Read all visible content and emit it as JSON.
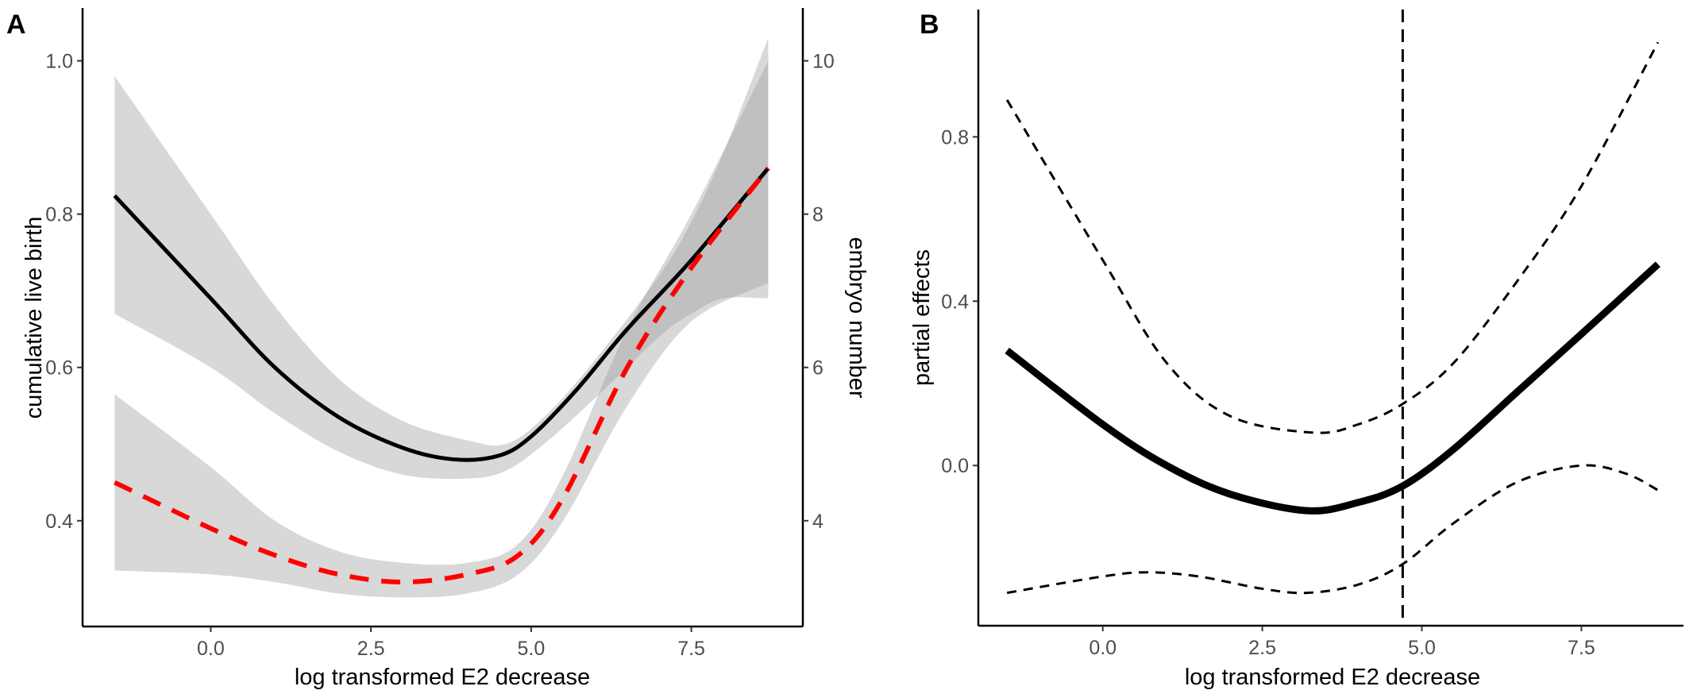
{
  "chart_data": [
    {
      "panel": "A",
      "type": "line",
      "xlabel": "log transformed E2 decrease",
      "ylabel": "cumulative live birth",
      "ylabel_right": "embryo number",
      "xlim": [
        -2.0,
        9.24
      ],
      "ylim": [
        0.262,
        1.069
      ],
      "ylim_right": [
        2.62,
        10.69
      ],
      "xticks": [
        "0.0",
        "2.5",
        "5.0",
        "7.5"
      ],
      "xtick_values": [
        0,
        2.5,
        5,
        7.5
      ],
      "yticks": [
        "0.4",
        "0.6",
        "0.8",
        "1.0"
      ],
      "ytick_values": [
        0.4,
        0.6,
        0.8,
        1.0
      ],
      "yticks_right": [
        "4",
        "6",
        "8",
        "10"
      ],
      "ytick_right_values": [
        4,
        6,
        8,
        10
      ],
      "grid": false,
      "series": [
        {
          "name": "cumulative live birth",
          "axis": "left",
          "color": "#000000",
          "style": "solid",
          "x": [
            -1.5,
            0,
            1,
            2,
            3,
            3.8,
            4.5,
            5,
            5.7,
            6.5,
            7.5,
            8.7
          ],
          "y": [
            0.824,
            0.69,
            0.6,
            0.535,
            0.495,
            0.48,
            0.485,
            0.51,
            0.57,
            0.65,
            0.74,
            0.86
          ],
          "ci_x": [
            -1.5,
            0,
            1,
            2,
            3,
            4,
            4.6,
            5.2,
            6,
            7,
            7.5,
            8,
            8.7
          ],
          "ci_upper": [
            0.98,
            0.8,
            0.68,
            0.585,
            0.53,
            0.505,
            0.5,
            0.535,
            0.61,
            0.72,
            0.79,
            0.88,
            1.03
          ],
          "ci_lower": [
            0.67,
            0.6,
            0.54,
            0.49,
            0.46,
            0.455,
            0.465,
            0.5,
            0.56,
            0.64,
            0.67,
            0.69,
            0.69
          ]
        },
        {
          "name": "embryo number",
          "axis": "right",
          "color": "#ff0000",
          "style": "dashed",
          "x": [
            -1.5,
            0,
            1,
            2,
            3,
            4,
            4.8,
            5.5,
            6.5,
            7.5,
            8.7
          ],
          "y": [
            4.5,
            3.9,
            3.55,
            3.3,
            3.2,
            3.3,
            3.55,
            4.3,
            6.0,
            7.3,
            8.6
          ],
          "ci_x": [
            -1.5,
            0,
            1,
            2,
            3,
            4,
            4.8,
            5.5,
            6.5,
            7.5,
            8.7
          ],
          "ci_upper": [
            5.65,
            4.7,
            4.0,
            3.6,
            3.45,
            3.45,
            3.7,
            4.6,
            6.5,
            8.0,
            10.0
          ],
          "ci_lower": [
            3.35,
            3.3,
            3.2,
            3.05,
            3.0,
            3.05,
            3.3,
            4.0,
            5.5,
            6.6,
            7.1
          ]
        }
      ]
    },
    {
      "panel": "B",
      "type": "line",
      "xlabel": "log transformed E2 decrease",
      "ylabel": "partial effects",
      "xlim": [
        -1.95,
        9.1
      ],
      "ylim": [
        -0.39,
        1.11
      ],
      "xticks": [
        "0.0",
        "2.5",
        "5.0",
        "7.5"
      ],
      "xtick_values": [
        0,
        2.5,
        5,
        7.5
      ],
      "yticks": [
        "0.0",
        "0.4",
        "0.8"
      ],
      "ytick_values": [
        0,
        0.4,
        0.8
      ],
      "grid": false,
      "vline": 4.7,
      "series": [
        {
          "name": "fit",
          "style": "solid-thick",
          "color": "#000000",
          "x": [
            -1.5,
            0,
            1,
            2,
            3.2,
            4,
            4.7,
            5.5,
            6.5,
            7.5,
            8.7
          ],
          "y": [
            0.28,
            0.1,
            0.0,
            -0.07,
            -0.11,
            -0.09,
            -0.05,
            0.04,
            0.18,
            0.32,
            0.49
          ]
        },
        {
          "name": "upper",
          "style": "dashed",
          "color": "#000000",
          "x": [
            -1.5,
            0,
            1,
            2,
            3.3,
            4,
            4.7,
            5.5,
            6.5,
            7.5,
            8.7
          ],
          "y": [
            0.89,
            0.5,
            0.25,
            0.12,
            0.08,
            0.1,
            0.15,
            0.25,
            0.45,
            0.68,
            1.03
          ]
        },
        {
          "name": "lower",
          "style": "dashed",
          "color": "#000000",
          "x": [
            -1.5,
            0,
            0.7,
            1.5,
            2.5,
            3.2,
            4,
            4.7,
            5.5,
            6.5,
            7.5,
            8.2,
            8.7
          ],
          "y": [
            -0.31,
            -0.27,
            -0.26,
            -0.27,
            -0.3,
            -0.31,
            -0.29,
            -0.24,
            -0.14,
            -0.04,
            0.0,
            -0.02,
            -0.06
          ]
        }
      ]
    }
  ]
}
